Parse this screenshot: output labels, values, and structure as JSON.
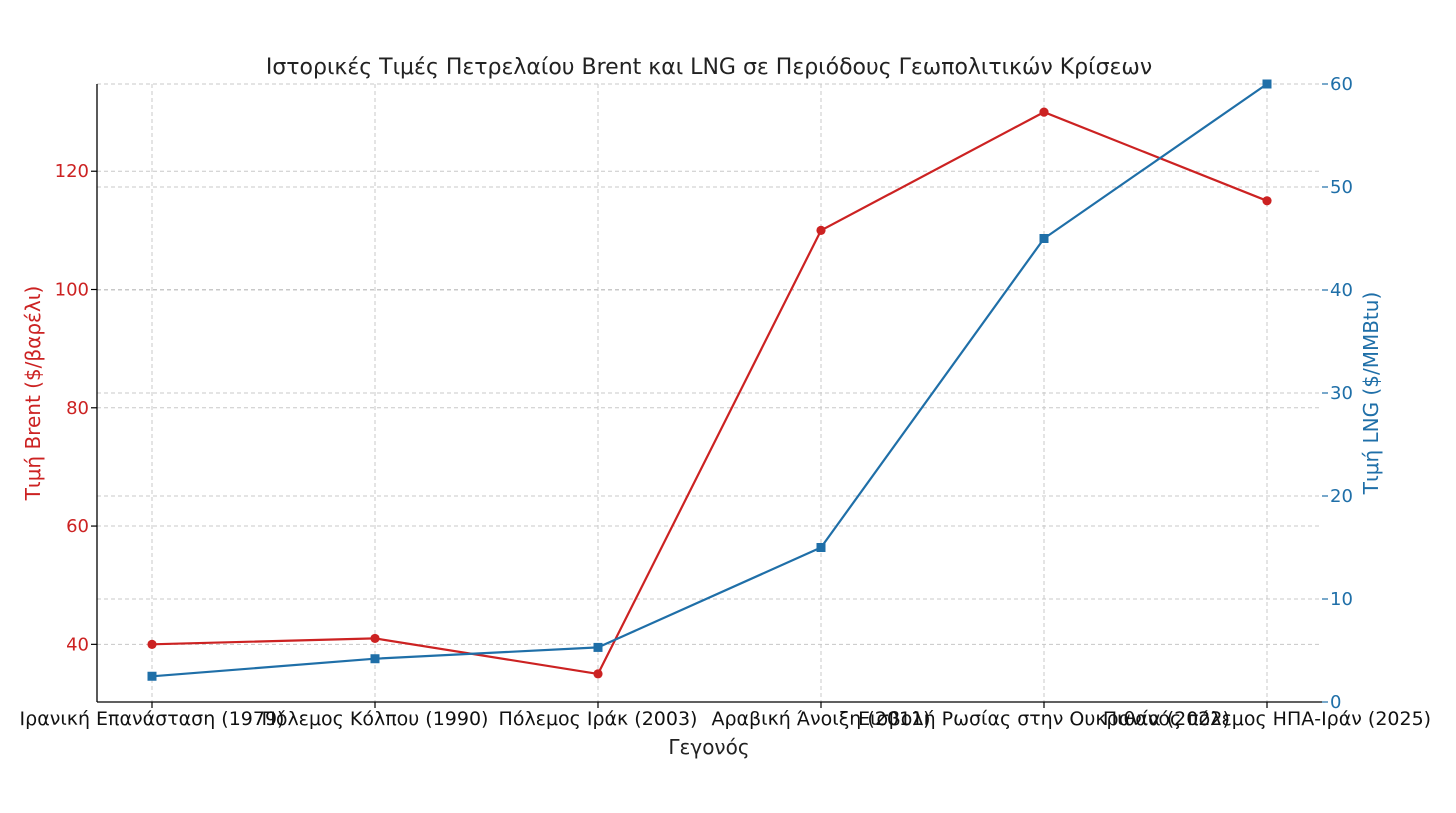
{
  "chart_data": {
    "type": "line",
    "title": "Ιστορικές Τιμές Πετρελαίου Brent και LNG σε Περιόδους Γεωπολιτικών Κρίσεων",
    "xlabel": "Γεγονός",
    "categories": [
      "Ιρανική Επανάσταση (1979)",
      "Πόλεμος Κόλπου (1990)",
      "Πόλεμος Ιράκ (2003)",
      "Αραβική Άνοιξη (2011)",
      "Εισβολή Ρωσίας στην Ουκρανία (2022)",
      "Πιθανός πόλεμος ΗΠΑ-Ιράν (2025)"
    ],
    "left_axis": {
      "label": "Τιμή Brent ($/βαρέλι)",
      "ylim": [
        30.25,
        134.75
      ],
      "ticks": [
        40,
        60,
        80,
        100,
        120
      ],
      "color": "#cc2222"
    },
    "right_axis": {
      "label": "Τιμή LNG ($/MMBtu)",
      "ylim": [
        0,
        60
      ],
      "ticks": [
        0,
        10,
        20,
        30,
        40,
        50,
        60
      ],
      "color": "#1f6fa8"
    },
    "grid": true,
    "series": [
      {
        "name": "Brent",
        "axis": "left",
        "marker": "circle",
        "color": "#cc2222",
        "values": [
          40,
          41,
          35,
          110,
          130,
          115
        ]
      },
      {
        "name": "LNG",
        "axis": "right",
        "marker": "square",
        "color": "#1f6fa8",
        "values": [
          2.5,
          4.2,
          5.3,
          15,
          45,
          60
        ]
      }
    ]
  }
}
